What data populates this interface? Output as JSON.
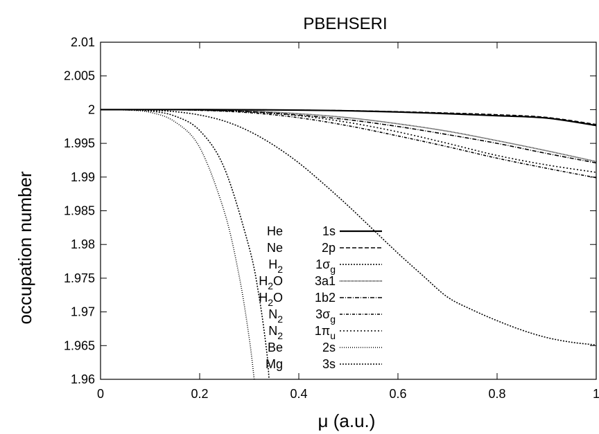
{
  "chart_data": {
    "type": "line",
    "title": "PBEHSERI",
    "xlabel": "μ (a.u.)",
    "ylabel": "occupation number",
    "xlim": [
      0,
      1
    ],
    "ylim": [
      1.96,
      2.01
    ],
    "x_ticks": [
      "0",
      "0.2",
      "0.4",
      "0.6",
      "0.8",
      "1"
    ],
    "y_ticks": [
      "1.96",
      "1.965",
      "1.97",
      "1.975",
      "1.98",
      "1.985",
      "1.99",
      "1.995",
      "2",
      "2.005",
      "2.01"
    ],
    "grid": false,
    "legend_position": "center",
    "series": [
      {
        "mol": "He",
        "mol_sub": "",
        "orb": "1s",
        "orb_sub": "",
        "dash": "",
        "width": 2.2,
        "x": [
          0,
          0.1,
          0.2,
          0.3,
          0.4,
          0.5,
          0.6,
          0.7,
          0.8,
          0.9,
          1.0
        ],
        "y": [
          2.0,
          2.0,
          2.0,
          1.99998,
          1.99993,
          1.99983,
          1.99965,
          1.9994,
          1.9991,
          1.99875,
          1.99765
        ]
      },
      {
        "mol": "Ne",
        "mol_sub": "",
        "orb": "2p",
        "orb_sub": "",
        "dash": "6,3",
        "width": 1.6,
        "x": [
          0,
          0.1,
          0.2,
          0.3,
          0.4,
          0.5,
          0.6,
          0.7,
          0.8,
          0.9,
          1.0
        ],
        "y": [
          2.0,
          2.0,
          2.0,
          1.99998,
          1.99993,
          1.99985,
          1.9997,
          1.9995,
          1.99925,
          1.99885,
          1.9978
        ]
      },
      {
        "mol": "H",
        "mol_sub": "2",
        "orb": "1σ",
        "orb_sub": "g",
        "dash": "2,2",
        "width": 1.6,
        "x": [
          0,
          0.1,
          0.15,
          0.2,
          0.25,
          0.3,
          0.35,
          0.4,
          0.45,
          0.5,
          0.55,
          0.6,
          0.65,
          0.7,
          0.75,
          0.8,
          0.85,
          0.9,
          0.95,
          1.0
        ],
        "y": [
          2.0,
          1.9999,
          1.9997,
          1.9992,
          1.9983,
          1.9968,
          1.9947,
          1.9921,
          1.989,
          1.9857,
          1.9822,
          1.9787,
          1.9754,
          1.9722,
          1.9703,
          1.9687,
          1.9673,
          1.9662,
          1.9655,
          1.9651
        ]
      },
      {
        "mol": "H",
        "mol_sub": "2",
        "extra": "O",
        "orb": "3a1",
        "orb_sub": "",
        "dash": "1,1",
        "width": 1.6,
        "x": [
          0,
          0.1,
          0.2,
          0.3,
          0.4,
          0.5,
          0.6,
          0.7,
          0.8,
          0.9,
          1.0
        ],
        "y": [
          2.0,
          2.0,
          1.99995,
          1.9998,
          1.9994,
          1.9988,
          1.9979,
          1.9968,
          1.9954,
          1.9939,
          1.9923
        ]
      },
      {
        "mol": "H",
        "mol_sub": "2",
        "extra": "O",
        "orb": "1b2",
        "orb_sub": "",
        "dash": "6,2,1,2",
        "width": 1.6,
        "x": [
          0,
          0.1,
          0.2,
          0.3,
          0.4,
          0.5,
          0.6,
          0.7,
          0.8,
          0.9,
          1.0
        ],
        "y": [
          2.0,
          2.0,
          1.99993,
          1.9997,
          1.9992,
          1.9985,
          1.9975,
          1.9963,
          1.995,
          1.9935,
          1.9921
        ]
      },
      {
        "mol": "N",
        "mol_sub": "2",
        "orb": "3σ",
        "orb_sub": "g",
        "dash": "4,2,1,2",
        "width": 1.6,
        "x": [
          0,
          0.1,
          0.2,
          0.3,
          0.4,
          0.5,
          0.6,
          0.7,
          0.8,
          0.9,
          1.0
        ],
        "y": [
          2.0,
          2.0,
          1.9999,
          1.99955,
          1.9988,
          1.9976,
          1.9961,
          1.9945,
          1.9928,
          1.9913,
          1.9899
        ]
      },
      {
        "mol": "N",
        "mol_sub": "2",
        "orb": "1π",
        "orb_sub": "u",
        "dash": "2,3",
        "width": 1.6,
        "x": [
          0,
          0.1,
          0.2,
          0.3,
          0.4,
          0.5,
          0.6,
          0.7,
          0.8,
          0.9,
          1.0
        ],
        "y": [
          2.0,
          2.0,
          1.99992,
          1.99965,
          1.9991,
          1.9981,
          1.9967,
          1.995,
          1.9932,
          1.9918,
          1.9907
        ]
      },
      {
        "mol": "Be",
        "mol_sub": "",
        "orb": "2s",
        "orb_sub": "",
        "dash": "1,2",
        "width": 1.6,
        "x": [
          0,
          0.05,
          0.1,
          0.15,
          0.2,
          0.25,
          0.28,
          0.3,
          0.31
        ],
        "y": [
          2.0,
          1.99995,
          1.9996,
          1.9982,
          1.9944,
          1.9848,
          1.9752,
          1.9661,
          1.96
        ]
      },
      {
        "mol": "Mg",
        "mol_sub": "",
        "orb": "3s",
        "orb_sub": "",
        "dash": "2,2",
        "width": 1.6,
        "x": [
          0,
          0.05,
          0.1,
          0.15,
          0.2,
          0.25,
          0.3,
          0.32,
          0.335,
          0.34
        ],
        "y": [
          2.0,
          1.99997,
          1.9998,
          1.99905,
          1.9969,
          1.9913,
          1.9795,
          1.9722,
          1.9643,
          1.96
        ]
      }
    ]
  }
}
